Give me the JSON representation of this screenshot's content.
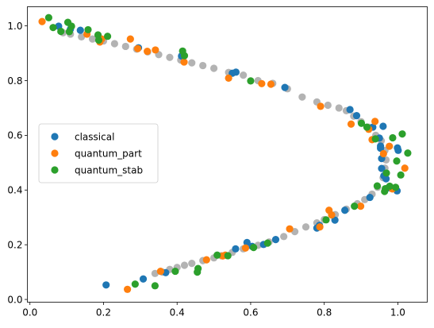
{
  "chart_data": {
    "type": "scatter",
    "title": "",
    "xlabel": "",
    "ylabel": "",
    "xlim": [
      -0.007,
      1.08
    ],
    "ylim": [
      -0.01,
      1.07
    ],
    "xticks": [
      "0.0",
      "0.2",
      "0.4",
      "0.6",
      "0.8",
      "1.0"
    ],
    "yticks": [
      "0.0",
      "0.2",
      "0.4",
      "0.6",
      "0.8",
      "1.0"
    ],
    "xtick_values": [
      0.0,
      0.2,
      0.4,
      0.6,
      0.8,
      1.0
    ],
    "ytick_values": [
      0.0,
      0.2,
      0.4,
      0.6,
      0.8,
      1.0
    ],
    "grid": false,
    "legend_position": "center-left",
    "background_color": "#808080",
    "series": [
      {
        "name": "classical",
        "color": "#1f77b4",
        "x": [
          0.207,
          0.308,
          0.369,
          0.559,
          0.59,
          0.604,
          0.635,
          0.668,
          0.693,
          0.78,
          0.787,
          0.829,
          0.856,
          0.888,
          0.924,
          0.932,
          0.95,
          0.953,
          0.956,
          0.956,
          0.962,
          0.968,
          0.974,
          0.998,
          1.001,
          0.999,
          0.953,
          0.96,
          0.87,
          0.295,
          0.55,
          0.56,
          0.412,
          0.137,
          0.11,
          0.078
        ],
        "y": [
          0.053,
          0.075,
          0.098,
          0.185,
          0.208,
          0.194,
          0.201,
          0.219,
          0.775,
          0.261,
          0.271,
          0.29,
          0.326,
          0.672,
          0.373,
          0.63,
          0.59,
          0.553,
          0.515,
          0.479,
          0.452,
          0.441,
          0.408,
          0.397,
          0.545,
          0.554,
          0.561,
          0.633,
          0.694,
          0.92,
          0.827,
          0.831,
          0.89,
          0.984,
          0.988,
          0.999
        ]
      },
      {
        "name": "quantum_part",
        "color": "#ff7f0e",
        "x": [
          0.265,
          0.355,
          0.48,
          0.524,
          0.531,
          0.586,
          0.706,
          0.788,
          0.813,
          0.82,
          0.873,
          0.899,
          0.921,
          0.93,
          0.961,
          0.977,
          1.019,
          0.985,
          0.938,
          0.79,
          0.655,
          0.63,
          0.54,
          0.419,
          0.341,
          0.319,
          0.293,
          0.273,
          0.195,
          0.19,
          0.155,
          0.033
        ],
        "y": [
          0.037,
          0.103,
          0.145,
          0.159,
          0.162,
          0.188,
          0.258,
          0.265,
          0.326,
          0.309,
          0.641,
          0.341,
          0.622,
          0.584,
          0.533,
          0.56,
          0.48,
          0.404,
          0.651,
          0.706,
          0.787,
          0.789,
          0.809,
          0.868,
          0.912,
          0.907,
          0.917,
          0.952,
          0.952,
          0.941,
          0.97,
          1.016
        ]
      },
      {
        "name": "quantum_stab",
        "color": "#2ca02c",
        "x": [
          0.286,
          0.34,
          0.395,
          0.455,
          0.457,
          0.509,
          0.538,
          0.608,
          0.646,
          0.805,
          0.882,
          0.901,
          0.916,
          0.939,
          0.964,
          0.969,
          0.978,
          0.994,
          1.008,
          1.012,
          1.027,
          0.997,
          0.986,
          0.966,
          0.944,
          0.6,
          0.42,
          0.415,
          0.211,
          0.185,
          0.158,
          0.113,
          0.107,
          0.103,
          0.063,
          0.051,
          0.084,
          0.187
        ],
        "y": [
          0.056,
          0.05,
          0.103,
          0.1,
          0.113,
          0.162,
          0.16,
          0.19,
          0.206,
          0.291,
          0.341,
          0.644,
          0.63,
          0.587,
          0.395,
          0.462,
          0.414,
          0.41,
          0.455,
          0.605,
          0.535,
          0.506,
          0.591,
          0.405,
          0.415,
          0.799,
          0.891,
          0.908,
          0.962,
          0.967,
          0.986,
          0.999,
          0.979,
          1.013,
          0.994,
          1.03,
          0.98,
          0.948
        ]
      },
      {
        "name": "",
        "color": "#808080",
        "x": [
          0.34,
          0.36,
          0.38,
          0.4,
          0.42,
          0.44,
          0.47,
          0.5,
          0.52,
          0.55,
          0.58,
          0.62,
          0.65,
          0.69,
          0.72,
          0.75,
          0.78,
          0.8,
          0.83,
          0.86,
          0.89,
          0.91,
          0.93,
          0.945,
          0.96,
          0.965,
          0.968,
          0.965,
          0.955,
          0.94,
          0.92,
          0.9,
          0.88,
          0.86,
          0.84,
          0.81,
          0.78,
          0.74,
          0.7,
          0.66,
          0.62,
          0.58,
          0.54,
          0.5,
          0.47,
          0.44,
          0.41,
          0.38,
          0.35,
          0.32,
          0.29,
          0.26,
          0.23,
          0.2,
          0.17,
          0.14,
          0.11,
          0.09
        ],
        "y": [
          0.095,
          0.1,
          0.11,
          0.117,
          0.125,
          0.132,
          0.142,
          0.152,
          0.16,
          0.172,
          0.185,
          0.198,
          0.21,
          0.23,
          0.248,
          0.265,
          0.28,
          0.292,
          0.31,
          0.33,
          0.35,
          0.365,
          0.385,
          0.41,
          0.445,
          0.48,
          0.51,
          0.545,
          0.58,
          0.6,
          0.63,
          0.65,
          0.67,
          0.69,
          0.7,
          0.71,
          0.722,
          0.74,
          0.77,
          0.79,
          0.8,
          0.82,
          0.83,
          0.845,
          0.855,
          0.865,
          0.875,
          0.885,
          0.895,
          0.905,
          0.915,
          0.925,
          0.935,
          0.945,
          0.952,
          0.96,
          0.97,
          0.975
        ]
      }
    ]
  }
}
